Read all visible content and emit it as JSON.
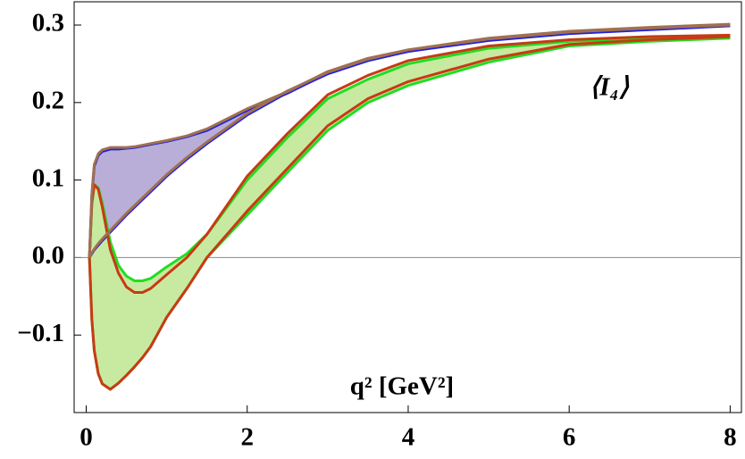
{
  "chart_data": {
    "type": "line",
    "annotation": "⟨I₄⟩",
    "x_label": "q² [GeV²]",
    "x": [
      0.04,
      0.07,
      0.1,
      0.15,
      0.2,
      0.3,
      0.4,
      0.5,
      0.6,
      0.7,
      0.8,
      1.0,
      1.25,
      1.5,
      2,
      2.5,
      3,
      3.5,
      4,
      5,
      6,
      7,
      8
    ],
    "series": [
      {
        "color": "#2020e0",
        "fill": "#b8aed8",
        "values": [
          0,
          0.08,
          0.118,
          0.132,
          0.137,
          0.14,
          0.14,
          0.141,
          0.142,
          0.144,
          0.146,
          0.15,
          0.156,
          0.164,
          0.19,
          0.212,
          0.238,
          0.255,
          0.266,
          0.281,
          0.29,
          0.295,
          0.3
        ]
      },
      {
        "color": "#2020e0",
        "values": [
          0,
          0.005,
          0.01,
          0.016,
          0.022,
          0.033,
          0.044,
          0.055,
          0.065,
          0.075,
          0.085,
          0.105,
          0.127,
          0.147,
          0.184,
          0.213,
          0.237,
          0.254,
          0.266,
          0.28,
          0.289,
          0.294,
          0.299
        ]
      },
      {
        "color": "#22dd22",
        "fill": "#c8eaa0",
        "values": [
          0,
          0.07,
          0.094,
          0.09,
          0.07,
          0.02,
          -0.01,
          -0.024,
          -0.03,
          -0.03,
          -0.027,
          -0.012,
          0.005,
          0.03,
          0.1,
          0.155,
          0.205,
          0.23,
          0.25,
          0.27,
          0.279,
          0.283,
          0.285
        ]
      },
      {
        "color": "#22dd22",
        "values": [
          0,
          -0.08,
          -0.12,
          -0.15,
          -0.163,
          -0.17,
          -0.162,
          -0.152,
          -0.141,
          -0.129,
          -0.115,
          -0.077,
          -0.04,
          0.0,
          0.055,
          0.11,
          0.164,
          0.2,
          0.222,
          0.252,
          0.273,
          0.279,
          0.283
        ]
      },
      {
        "color": "#c83a14",
        "values": [
          0,
          0.07,
          0.094,
          0.088,
          0.065,
          0.01,
          -0.02,
          -0.038,
          -0.045,
          -0.045,
          -0.04,
          -0.022,
          0.0,
          0.03,
          0.105,
          0.16,
          0.21,
          0.235,
          0.254,
          0.273,
          0.281,
          0.285,
          0.287
        ]
      },
      {
        "color": "#c83a14",
        "values": [
          0,
          -0.08,
          -0.12,
          -0.15,
          -0.163,
          -0.17,
          -0.162,
          -0.152,
          -0.141,
          -0.129,
          -0.115,
          -0.077,
          -0.04,
          0.0,
          0.06,
          0.115,
          0.17,
          0.205,
          0.227,
          0.256,
          0.275,
          0.281,
          0.285
        ]
      },
      {
        "color": "#a07050",
        "values": [
          0,
          0.082,
          0.12,
          0.134,
          0.139,
          0.142,
          0.142,
          0.142,
          0.143,
          0.145,
          0.147,
          0.151,
          0.157,
          0.166,
          0.192,
          0.214,
          0.24,
          0.257,
          0.268,
          0.283,
          0.292,
          0.297,
          0.301
        ]
      },
      {
        "color": "#a07050",
        "values": [
          0,
          0.006,
          0.011,
          0.018,
          0.024,
          0.035,
          0.046,
          0.057,
          0.067,
          0.077,
          0.087,
          0.107,
          0.129,
          0.149,
          0.186,
          0.215,
          0.239,
          0.256,
          0.268,
          0.282,
          0.291,
          0.296,
          0.3
        ]
      }
    ],
    "xlim": [
      -0.15,
      8.14
    ],
    "ylim": [
      -0.2,
      0.33
    ],
    "xticks": [
      0,
      2,
      4,
      6,
      8
    ],
    "yticks": [
      {
        "value": -0.1,
        "label": "−0.1"
      },
      {
        "value": 0,
        "label": "0.0"
      },
      0.1,
      0.2,
      0.3
    ],
    "zero_line": true
  }
}
